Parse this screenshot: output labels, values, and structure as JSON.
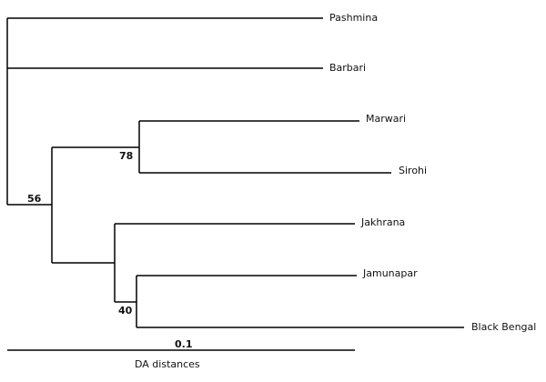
{
  "leaves": [
    "Pashmina",
    "Barbari",
    "Marwari",
    "Sirohi",
    "Jakhrana",
    "Jamunapar",
    "Black Bengal"
  ],
  "nodes": [
    {
      "support": 56
    },
    {
      "support": 78
    },
    {
      "support": 40
    }
  ],
  "scale": {
    "value": 0.1,
    "label": "DA distances"
  }
}
